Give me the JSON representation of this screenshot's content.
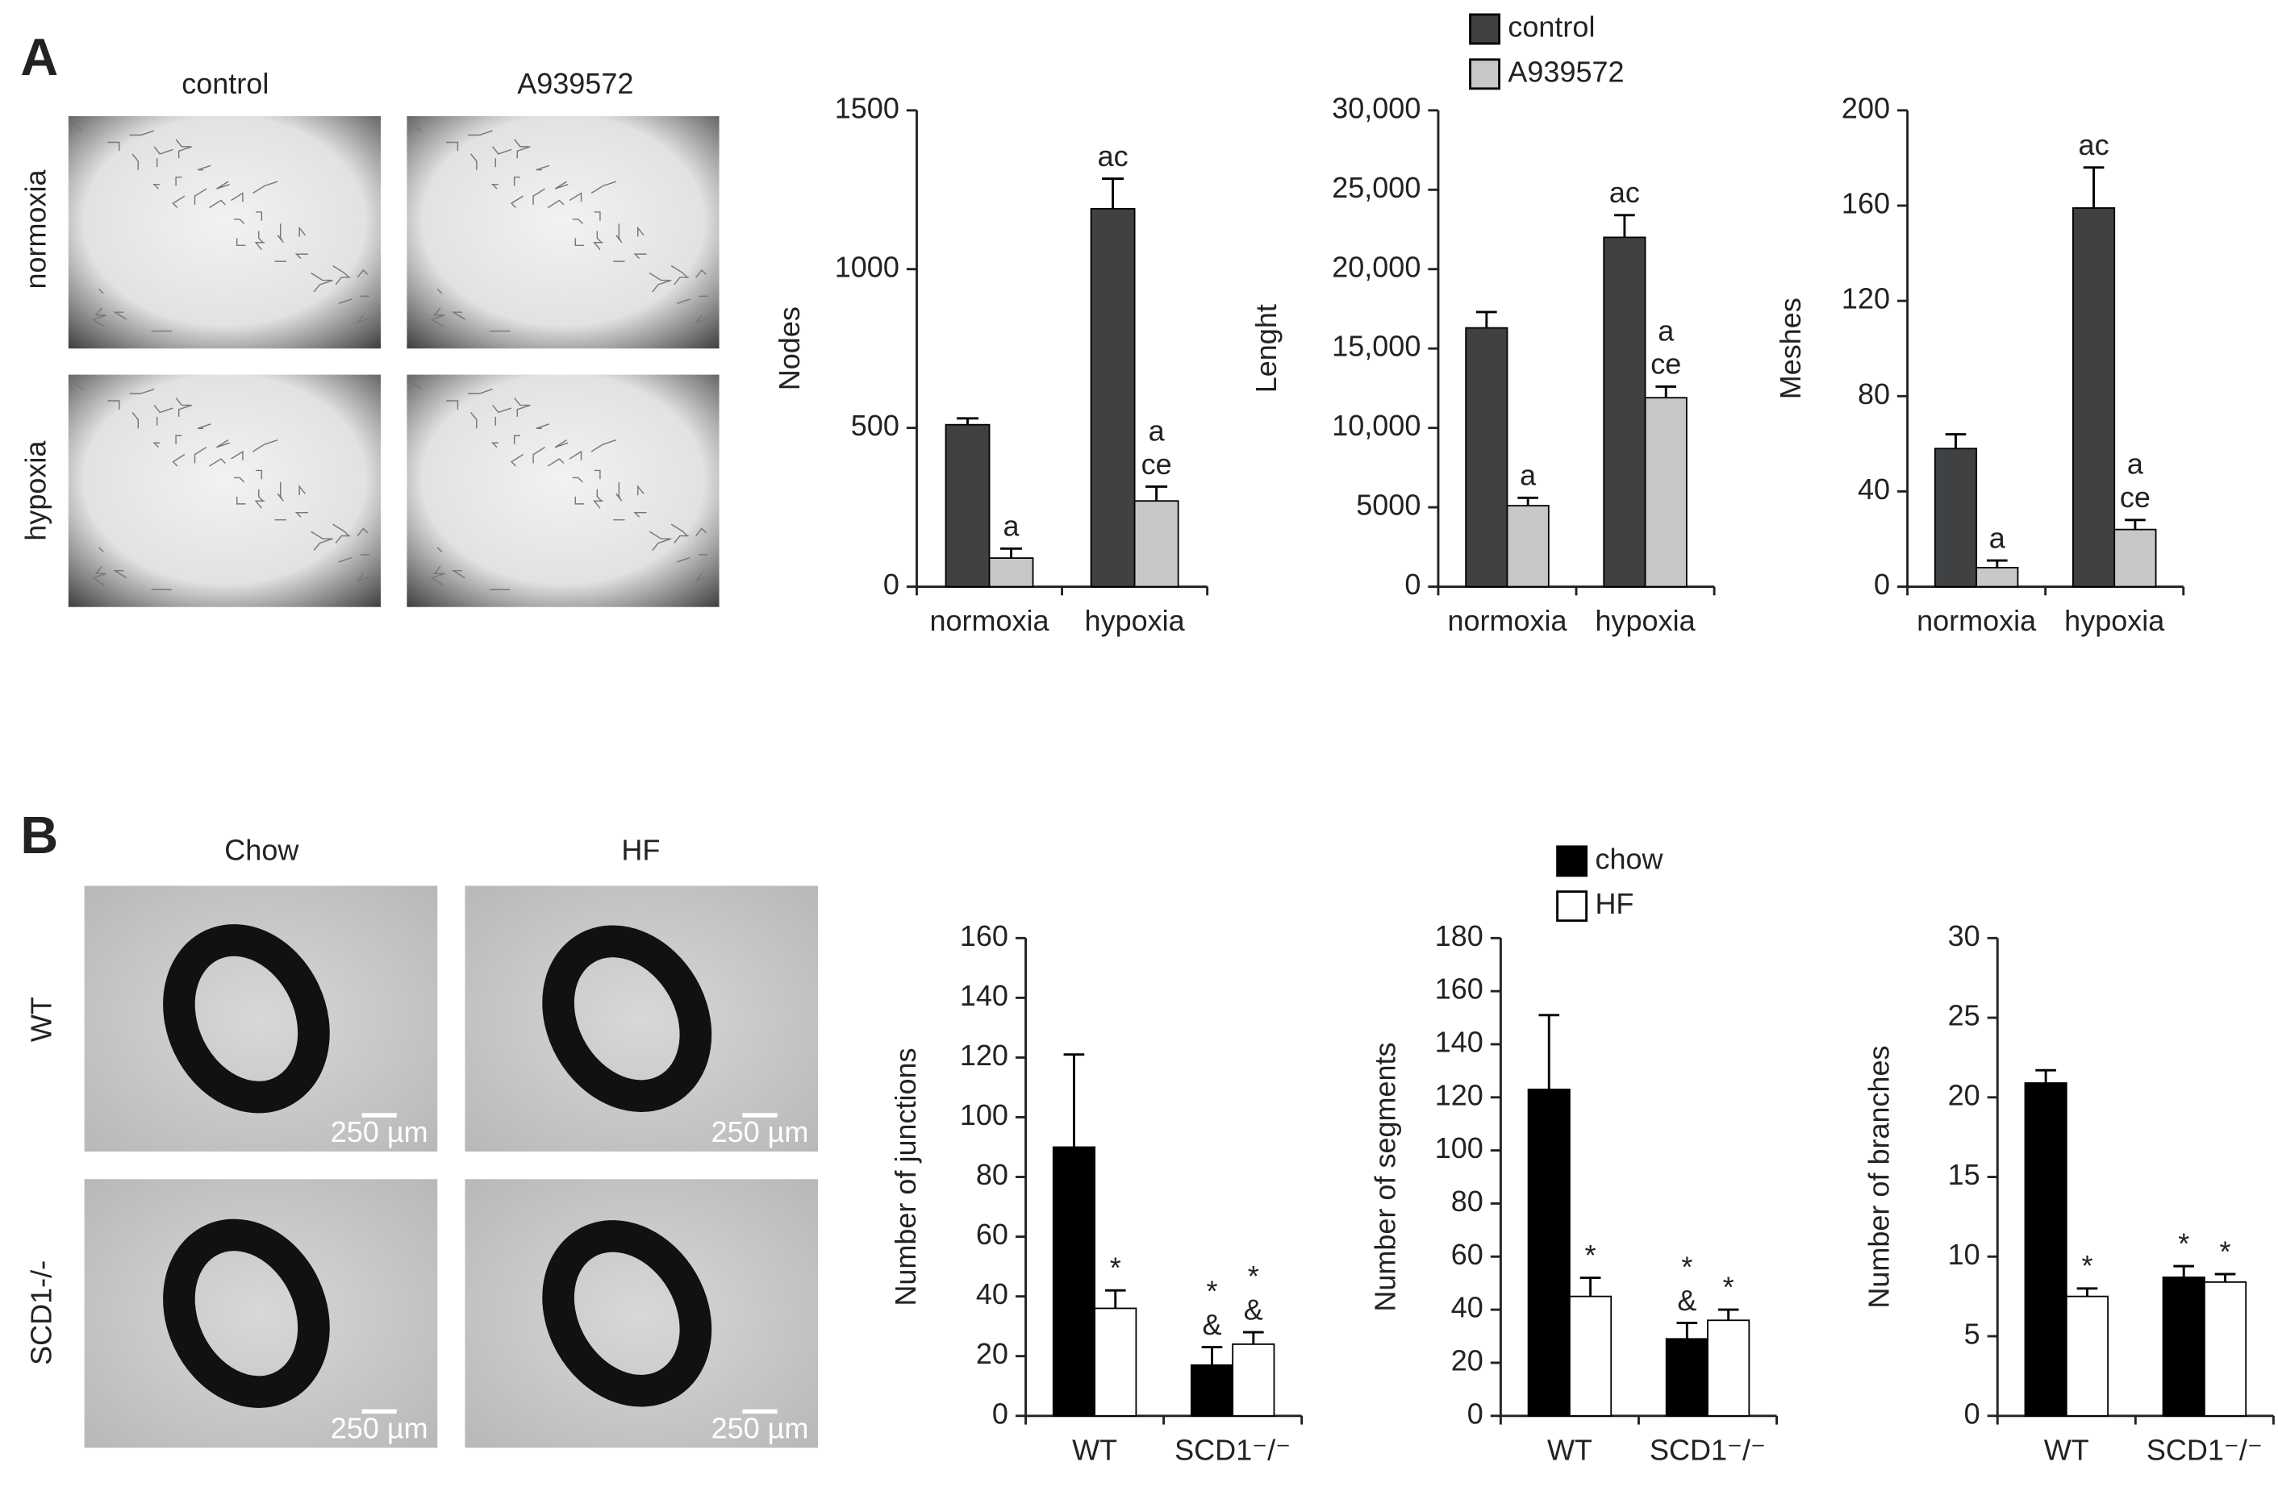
{
  "panels": [
    {
      "label": "A",
      "columns": [
        "control",
        "A939572"
      ],
      "rows": [
        "normoxia",
        "hypoxia"
      ]
    },
    {
      "label": "B",
      "columns": [
        "Chow",
        "HF"
      ],
      "rows": [
        "WT",
        "SCD1-/-"
      ],
      "scale_bar": "250 µm"
    }
  ],
  "chart_data": [
    {
      "type": "bar",
      "ylabel": "Nodes",
      "categories": [
        "normoxia",
        "hypoxia"
      ],
      "edgecolor": "#000000",
      "legend": false,
      "ylim": [
        0,
        1500
      ],
      "yticks": [
        0,
        500,
        1000,
        1500
      ],
      "series": [
        {
          "color": "#3f4143",
          "values": [
            510,
            1190
          ],
          "errors": [
            20,
            95
          ],
          "annotations": [
            null,
            [
              "ac"
            ]
          ]
        },
        {
          "color": "#c8c8c8",
          "values": [
            90,
            270
          ],
          "errors": [
            30,
            45
          ],
          "annotations": [
            [
              "a"
            ],
            [
              "a",
              "ce"
            ]
          ]
        }
      ]
    },
    {
      "type": "bar",
      "ylabel": "Lenght",
      "categories": [
        "normoxia",
        "hypoxia"
      ],
      "edgecolor": "#000000",
      "legend": true,
      "ylim": [
        0,
        30000
      ],
      "yticks": [
        0,
        5000,
        {
          "value": 10000,
          "label": "10,000"
        },
        {
          "value": 15000,
          "label": "15,000"
        },
        {
          "value": 20000,
          "label": "20,000"
        },
        {
          "value": 25000,
          "label": "25,000"
        },
        {
          "value": 30000,
          "label": "30,000"
        }
      ],
      "series": [
        {
          "name": "control",
          "color": "#3f4143",
          "values": [
            16300,
            22000
          ],
          "errors": [
            1000,
            1400
          ],
          "annotations": [
            null,
            [
              "ac"
            ]
          ]
        },
        {
          "name": "A939572",
          "color": "#c8c8c8",
          "values": [
            5100,
            11900
          ],
          "errors": [
            500,
            700
          ],
          "annotations": [
            [
              "a"
            ],
            [
              "a",
              "ce"
            ]
          ]
        }
      ]
    },
    {
      "type": "bar",
      "ylabel": "Meshes",
      "categories": [
        "normoxia",
        "hypoxia"
      ],
      "edgecolor": "#000000",
      "legend": false,
      "ylim": [
        0,
        200
      ],
      "yticks": [
        0,
        40,
        80,
        120,
        160,
        200
      ],
      "series": [
        {
          "color": "#3f4143",
          "values": [
            58,
            159
          ],
          "errors": [
            6,
            17
          ],
          "annotations": [
            null,
            [
              "ac"
            ]
          ]
        },
        {
          "color": "#c8c8c8",
          "values": [
            8,
            24
          ],
          "errors": [
            3,
            4
          ],
          "annotations": [
            [
              "a"
            ],
            [
              "a",
              "ce"
            ]
          ]
        }
      ]
    },
    {
      "type": "bar",
      "ylabel": "Number of junctions",
      "categories": [
        "WT",
        "SCD1⁻/⁻"
      ],
      "edgecolor": "#000000",
      "legend": false,
      "ylim": [
        0,
        160
      ],
      "yticks": [
        0,
        20,
        40,
        60,
        80,
        100,
        120,
        140,
        160
      ],
      "series": [
        {
          "color": "#000000",
          "values": [
            90,
            17
          ],
          "errors": [
            31,
            6
          ],
          "annotations": [
            null,
            [
              "*",
              "&"
            ]
          ]
        },
        {
          "color": "#ffffff",
          "values": [
            36,
            24
          ],
          "errors": [
            6,
            4
          ],
          "annotations": [
            [
              "*"
            ],
            [
              "*",
              "&"
            ]
          ]
        }
      ]
    },
    {
      "type": "bar",
      "ylabel": "Number of segments",
      "categories": [
        "WT",
        "SCD1⁻/⁻"
      ],
      "edgecolor": "#000000",
      "legend": true,
      "ylim": [
        0,
        180
      ],
      "yticks": [
        0,
        20,
        40,
        60,
        80,
        100,
        120,
        140,
        160,
        180
      ],
      "series": [
        {
          "name": "chow",
          "color": "#000000",
          "values": [
            123,
            29
          ],
          "errors": [
            28,
            6
          ],
          "annotations": [
            null,
            [
              "*",
              "&"
            ]
          ]
        },
        {
          "name": "HF",
          "color": "#ffffff",
          "values": [
            45,
            36
          ],
          "errors": [
            7,
            4
          ],
          "annotations": [
            [
              "*"
            ],
            [
              "*"
            ]
          ]
        }
      ]
    },
    {
      "type": "bar",
      "ylabel": "Number of branches",
      "categories": [
        "WT",
        "SCD1⁻/⁻"
      ],
      "edgecolor": "#000000",
      "legend": false,
      "ylim": [
        0,
        30
      ],
      "yticks": [
        0,
        5,
        10,
        15,
        20,
        25,
        30
      ],
      "series": [
        {
          "color": "#000000",
          "values": [
            20.9,
            8.7
          ],
          "errors": [
            0.8,
            0.7
          ],
          "annotations": [
            null,
            [
              "*"
            ]
          ]
        },
        {
          "color": "#ffffff",
          "values": [
            7.5,
            8.4
          ],
          "errors": [
            0.5,
            0.5
          ],
          "annotations": [
            [
              "*"
            ],
            [
              "*"
            ]
          ]
        }
      ]
    }
  ]
}
